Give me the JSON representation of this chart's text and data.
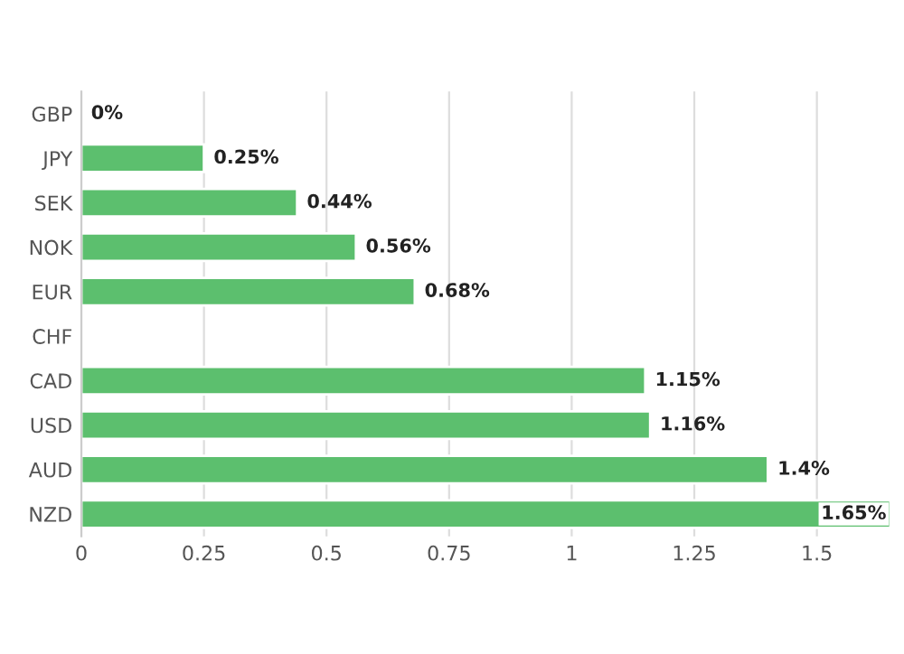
{
  "chart_data": {
    "type": "bar",
    "orientation": "horizontal",
    "categories": [
      "GBP",
      "JPY",
      "SEK",
      "NOK",
      "EUR",
      "CHF",
      "CAD",
      "USD",
      "AUD",
      "NZD"
    ],
    "values": [
      0,
      0.25,
      0.44,
      0.56,
      0.68,
      null,
      1.15,
      1.16,
      1.4,
      1.65
    ],
    "value_labels": [
      "0%",
      "0.25%",
      "0.44%",
      "0.56%",
      "0.68%",
      null,
      "1.15%",
      "1.16%",
      "1.4%",
      "1.65%"
    ],
    "color": "#5cbf6e",
    "xlim": [
      0,
      1.65
    ],
    "xticks": [
      0,
      0.25,
      0.5,
      0.75,
      1,
      1.25,
      1.5
    ],
    "grid": "x"
  }
}
